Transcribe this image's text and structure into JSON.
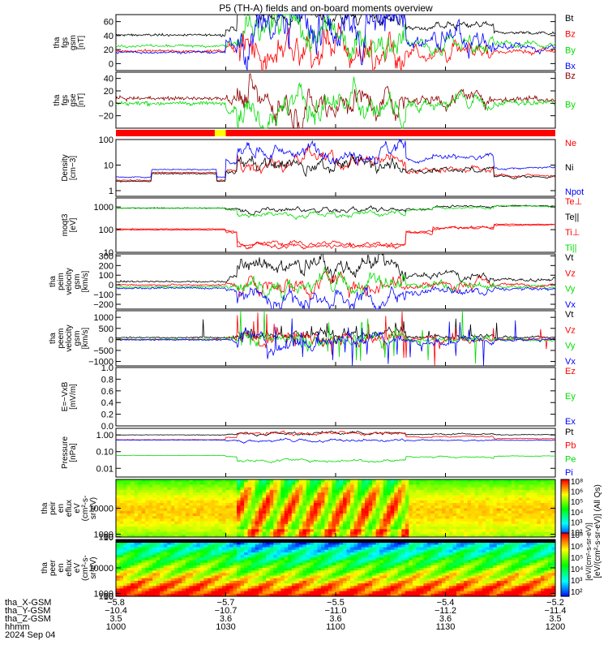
{
  "title": "P5 (TH-A) fields and on-board moments overview",
  "colors": {
    "black": "#000000",
    "red": "#ff0000",
    "green": "#00dd00",
    "blue": "#0000ff",
    "darkred": "#8b0000",
    "yellow": "#ffff00"
  },
  "chart_data": [
    {
      "type": "line",
      "ylabel_lines": [
        "tha",
        "fgs",
        "gsm",
        "[nT]"
      ],
      "ylim": [
        -10,
        70
      ],
      "ticks": [
        0,
        20,
        40,
        60
      ],
      "tick_labels": [
        "0",
        "20",
        "40",
        "60"
      ],
      "series": [
        {
          "name": "Bt",
          "color": "black"
        },
        {
          "name": "Bz",
          "color": "red"
        },
        {
          "name": "By",
          "color": "green"
        },
        {
          "name": "Bx",
          "color": "blue"
        }
      ]
    },
    {
      "type": "line",
      "ylabel_lines": [
        "tha",
        "fgs",
        "gse",
        "[nT]"
      ],
      "ylim": [
        -40,
        50
      ],
      "ticks": [
        -20,
        0,
        20,
        40
      ],
      "tick_labels": [
        "−20",
        "0",
        "20",
        "40"
      ],
      "series": [
        {
          "name": "Bz",
          "color": "darkred"
        },
        {
          "name": "By",
          "color": "green"
        }
      ]
    },
    {
      "type": "flag_bar",
      "description": "mode bar",
      "segments": [
        {
          "start": "10:00",
          "end": "10:27",
          "color": "red"
        },
        {
          "start": "10:27",
          "end": "10:30",
          "color": "yellow"
        },
        {
          "start": "10:30",
          "end": "12:00",
          "color": "red"
        }
      ]
    },
    {
      "type": "line",
      "scale": "log",
      "ylabel_lines": [
        "Density",
        "[cm−3]"
      ],
      "ylim": [
        0.6,
        100
      ],
      "ticks": [
        1,
        10,
        100
      ],
      "tick_labels": [
        "1",
        "10",
        "100"
      ],
      "series": [
        {
          "name": "Ne",
          "color": "red"
        },
        {
          "name": "Ni",
          "color": "black"
        },
        {
          "name": "Npot",
          "color": "blue"
        }
      ]
    },
    {
      "type": "line",
      "scale": "log",
      "ylabel_lines": [
        "moqt3",
        "[eV]"
      ],
      "ylim": [
        10,
        2500
      ],
      "ticks": [
        10,
        100,
        1000
      ],
      "tick_labels": [
        "10",
        "100",
        "1000"
      ],
      "series": [
        {
          "name": "Te⊥",
          "color": "red"
        },
        {
          "name": "Te||",
          "color": "black"
        },
        {
          "name": "Ti⊥",
          "color": "red"
        },
        {
          "name": "Ti||",
          "color": "green"
        }
      ]
    },
    {
      "type": "line",
      "ylabel_lines": [
        "tha",
        "peim",
        "velocity",
        "gsm",
        "[km/s]"
      ],
      "ylim": [
        -250,
        320
      ],
      "ticks": [
        -200,
        -100,
        0,
        100,
        200,
        300
      ],
      "tick_labels": [
        "−200",
        "−100",
        "0",
        "100",
        "200",
        "300"
      ],
      "series": [
        {
          "name": "Vt",
          "color": "black"
        },
        {
          "name": "Vz",
          "color": "red"
        },
        {
          "name": "Vy",
          "color": "green"
        },
        {
          "name": "Vx",
          "color": "blue"
        }
      ]
    },
    {
      "type": "line",
      "ylabel_lines": [
        "tha",
        "peem",
        "velocity",
        "gsm",
        "[km/s]"
      ],
      "ylim": [
        -1200,
        1300
      ],
      "ticks": [
        -1000,
        -500,
        0,
        500,
        1000
      ],
      "tick_labels": [
        "−1000",
        "−500",
        "0",
        "500",
        "1000"
      ],
      "series": [
        {
          "name": "Vt",
          "color": "black"
        },
        {
          "name": "Vz",
          "color": "red"
        },
        {
          "name": "Vy",
          "color": "green"
        },
        {
          "name": "Vx",
          "color": "blue"
        }
      ]
    },
    {
      "type": "line",
      "ylabel_lines": [
        "E=−VxB",
        "[mV/m]"
      ],
      "ylim": [
        0,
        1
      ],
      "ticks": [
        0,
        0.2,
        0.4,
        0.6,
        0.8,
        1.0
      ],
      "tick_labels": [
        "0.0",
        "0.2",
        "0.4",
        "0.6",
        "0.8",
        "1.0"
      ],
      "series": [
        {
          "name": "Ez",
          "color": "red"
        },
        {
          "name": "Ey",
          "color": "green"
        },
        {
          "name": "Ex",
          "color": "blue"
        }
      ]
    },
    {
      "type": "line",
      "scale": "log",
      "ylabel_lines": [
        "Pressure",
        "[nPa]"
      ],
      "ylim": [
        0.003,
        2.5
      ],
      "ticks": [
        0.01,
        0.1,
        1
      ],
      "tick_labels": [
        "0.01",
        "0.10",
        "1.00"
      ],
      "series": [
        {
          "name": "Pt",
          "color": "black"
        },
        {
          "name": "Pb",
          "color": "red"
        },
        {
          "name": "Pe",
          "color": "green"
        },
        {
          "name": "Pi",
          "color": "blue"
        }
      ]
    },
    {
      "type": "heatmap",
      "ylabel_lines": [
        "tha",
        "peir",
        "en",
        "eflux",
        "eV",
        "(cm²-s-",
        "sr-eV)"
      ],
      "ylim": [
        6,
        20000
      ],
      "ticks": [
        10,
        100,
        1000,
        10000
      ],
      "tick_labels": [
        "10",
        "100",
        "1000",
        "10000"
      ]
    },
    {
      "type": "heatmap",
      "ylabel_lines": [
        "tha",
        "peer",
        "en",
        "eflux",
        "eV",
        "(cm²-s-",
        "sr-eV)"
      ],
      "ylim": [
        6,
        20000
      ],
      "ticks": [
        10,
        100,
        1000,
        10000
      ],
      "tick_labels": [
        "10",
        "100",
        "1000",
        "10000"
      ]
    }
  ],
  "colorbar": {
    "label": "[eV/(cm²-s-sr-eV)] (All Qs)",
    "label2": "[eV/(cm²-s-sr-eV)]",
    "upper_ticks": [
      "10²",
      "10³",
      "10⁴",
      "10⁵",
      "10⁶",
      "10⁸"
    ],
    "lower_ticks": [
      "10²",
      "10³",
      "10⁴",
      "10⁵",
      "10⁶",
      "10⁸"
    ]
  },
  "xaxis": {
    "xlim": [
      "10:00",
      "12:00"
    ],
    "row_labels": [
      "tha_X-GSM",
      "tha_Y-GSM",
      "tha_Z-GSM",
      "hhmm",
      "2024 Sep 04"
    ],
    "ticks": [
      {
        "time": "10:00",
        "vals": [
          "−5.8",
          "−10.4",
          "3.5",
          "1000"
        ]
      },
      {
        "time": "10:30",
        "vals": [
          "−5.7",
          "−10.7",
          "3.6",
          "1030"
        ]
      },
      {
        "time": "11:00",
        "vals": [
          "−5.5",
          "−11.0",
          "3.6",
          "1100"
        ]
      },
      {
        "time": "11:30",
        "vals": [
          "−5.4",
          "−11.2",
          "3.6",
          "1130"
        ]
      },
      {
        "time": "12:00",
        "vals": [
          "−5.2",
          "−11.4",
          "3.5",
          "1200"
        ]
      }
    ]
  }
}
